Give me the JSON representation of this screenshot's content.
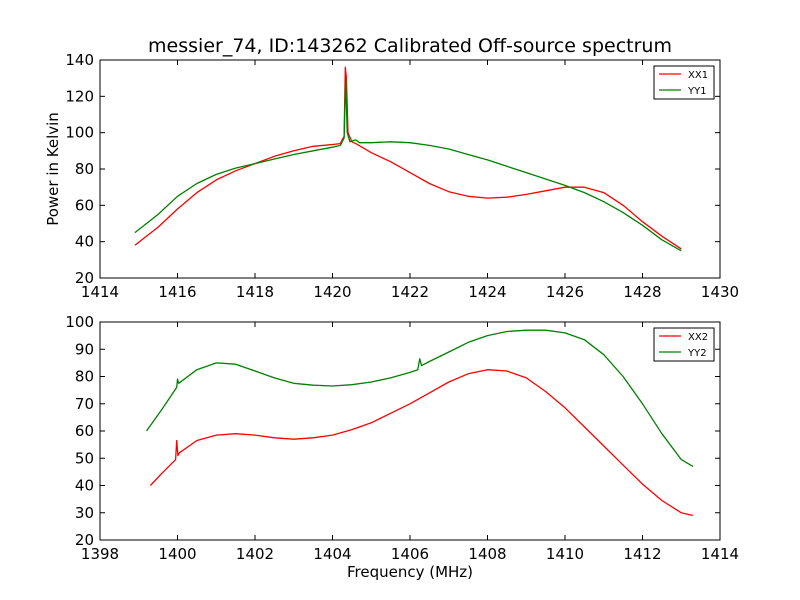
{
  "chart_data": [
    {
      "type": "line",
      "title": "messier_74, ID:143262 Calibrated Off-source spectrum",
      "xlabel": "",
      "ylabel": "Power in Kelvin",
      "xlim": [
        1414,
        1430
      ],
      "ylim": [
        20,
        140
      ],
      "xticks": [
        1414,
        1416,
        1418,
        1420,
        1422,
        1424,
        1426,
        1428,
        1430
      ],
      "yticks": [
        20,
        40,
        60,
        80,
        100,
        120,
        140
      ],
      "legend_position": "top-right",
      "series": [
        {
          "name": "XX1",
          "color": "#ff0000",
          "x": [
            1414.9,
            1415.5,
            1416,
            1416.5,
            1417,
            1417.5,
            1418,
            1418.5,
            1419,
            1419.5,
            1420,
            1420.2,
            1420.3,
            1420.33,
            1420.36,
            1420.4,
            1420.5,
            1420.6,
            1420.8,
            1421,
            1421.5,
            1422,
            1422.5,
            1423,
            1423.5,
            1424,
            1424.5,
            1425,
            1425.5,
            1426,
            1426.5,
            1427,
            1427.5,
            1428,
            1428.5,
            1429
          ],
          "y": [
            38,
            48,
            58,
            67,
            74,
            79,
            83,
            87,
            90,
            92.5,
            93.5,
            94,
            98,
            136,
            130,
            100,
            95,
            94,
            91.5,
            89,
            84,
            78,
            72,
            67.5,
            65,
            64,
            64.5,
            66,
            68,
            70,
            70,
            67,
            60,
            51,
            43,
            36
          ]
        },
        {
          "name": "YY1",
          "color": "#008000",
          "x": [
            1414.9,
            1415.5,
            1416,
            1416.5,
            1417,
            1417.5,
            1418,
            1418.5,
            1419,
            1419.5,
            1420,
            1420.2,
            1420.3,
            1420.34,
            1420.38,
            1420.45,
            1420.6,
            1420.7,
            1421,
            1421.5,
            1422,
            1422.5,
            1423,
            1423.5,
            1424,
            1424.5,
            1425,
            1425.5,
            1426,
            1426.5,
            1427,
            1427.5,
            1428,
            1428.5,
            1429
          ],
          "y": [
            45,
            55,
            65,
            72,
            77,
            80.5,
            83,
            85.5,
            88,
            90,
            92,
            93,
            97,
            130,
            100,
            95,
            96,
            94.5,
            94.5,
            95,
            94.5,
            93,
            91,
            88,
            85,
            81.5,
            78,
            74.5,
            71,
            67,
            62,
            56,
            49,
            41,
            35
          ]
        }
      ]
    },
    {
      "type": "line",
      "title": "",
      "xlabel": "Frequency (MHz)",
      "ylabel": "",
      "xlim": [
        1398,
        1414
      ],
      "ylim": [
        20,
        100
      ],
      "xticks": [
        1398,
        1400,
        1402,
        1404,
        1406,
        1408,
        1410,
        1412,
        1414
      ],
      "yticks": [
        20,
        30,
        40,
        50,
        60,
        70,
        80,
        90,
        100
      ],
      "legend_position": "top-right",
      "series": [
        {
          "name": "XX2",
          "color": "#ff0000",
          "x": [
            1399.3,
            1399.6,
            1399.95,
            1399.98,
            1400.01,
            1400.05,
            1400.5,
            1401,
            1401.5,
            1402,
            1402.5,
            1403,
            1403.5,
            1404,
            1404.5,
            1405,
            1405.5,
            1406,
            1406.5,
            1407,
            1407.5,
            1408,
            1408.5,
            1409,
            1409.5,
            1410,
            1410.5,
            1411,
            1411.5,
            1412,
            1412.5,
            1413,
            1413.3
          ],
          "y": [
            40,
            44.5,
            49.5,
            56.5,
            51,
            52,
            56.5,
            58.5,
            59,
            58.5,
            57.5,
            57,
            57.5,
            58.5,
            60.5,
            63,
            66.5,
            70,
            74,
            78,
            81,
            82.5,
            82,
            79.5,
            74.5,
            68.5,
            61.5,
            54.5,
            47.5,
            40.5,
            34.5,
            30,
            29
          ]
        },
        {
          "name": "YY2",
          "color": "#008000",
          "x": [
            1399.2,
            1399.6,
            1399.98,
            1400.0,
            1400.03,
            1400.5,
            1401,
            1401.5,
            1402,
            1402.5,
            1403,
            1403.5,
            1404,
            1404.5,
            1405,
            1405.5,
            1406,
            1406.2,
            1406.25,
            1406.3,
            1406.5,
            1407,
            1407.5,
            1408,
            1408.5,
            1409,
            1409.5,
            1410,
            1410.5,
            1411,
            1411.5,
            1412,
            1412.5,
            1413,
            1413.3
          ],
          "y": [
            60,
            68,
            76,
            79,
            77.5,
            82.5,
            85,
            84.5,
            82,
            79.5,
            77.5,
            76.8,
            76.5,
            77,
            78,
            79.5,
            81.5,
            82.5,
            86.5,
            84,
            85.5,
            89,
            92.5,
            95,
            96.5,
            97,
            97,
            96,
            93.5,
            88,
            80,
            70,
            59,
            49.5,
            47
          ]
        }
      ]
    }
  ]
}
